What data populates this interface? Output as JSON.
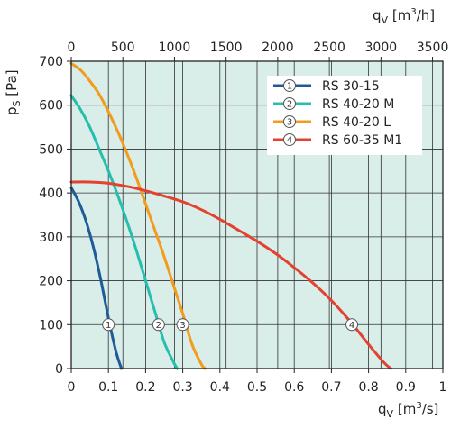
{
  "chart_data": {
    "type": "line",
    "plot_background": "#d9ede9",
    "grid": true,
    "legend_position": "top-right",
    "x_axis": {
      "label_main": "q",
      "label_sub": "V",
      "label_unit": "[m",
      "label_unit_sup": "3",
      "label_unit_end": "/s]",
      "range": [
        0,
        1.0
      ],
      "ticks": [
        "0",
        "0.1",
        "0.2",
        "0.3",
        "0.4",
        "0.5",
        "0.6",
        "0.7",
        "0.8",
        "0.9",
        "1"
      ]
    },
    "x2_axis": {
      "label_main": "q",
      "label_sub": "V",
      "label_unit": "[m",
      "label_unit_sup": "3",
      "label_unit_end": "/h]",
      "range": [
        0,
        3600
      ],
      "ticks": [
        "0",
        "500",
        "1000",
        "1500",
        "2000",
        "2500",
        "3000",
        "3500"
      ]
    },
    "y_axis": {
      "label_main": "p",
      "label_sub": "S",
      "label_unit": "[Pa]",
      "range": [
        0,
        700
      ],
      "ticks": [
        "0",
        "100",
        "200",
        "300",
        "400",
        "500",
        "600",
        "700"
      ]
    },
    "series": [
      {
        "name": "RS 30-15",
        "marker": "1",
        "color": "#1f5b99",
        "marker_point": [
          0.1,
          100
        ],
        "x": [
          0,
          0.02,
          0.04,
          0.06,
          0.08,
          0.1,
          0.12,
          0.135
        ],
        "y": [
          412,
          380,
          335,
          275,
          200,
          115,
          40,
          0
        ]
      },
      {
        "name": "RS 40-20 M",
        "marker": "2",
        "color": "#26bfae",
        "marker_point": [
          0.235,
          100
        ],
        "x": [
          0,
          0.025,
          0.05,
          0.075,
          0.1,
          0.125,
          0.15,
          0.175,
          0.2,
          0.225,
          0.25,
          0.275,
          0.285
        ],
        "y": [
          622,
          590,
          550,
          500,
          450,
          395,
          335,
          270,
          200,
          130,
          60,
          15,
          0
        ]
      },
      {
        "name": "RS 40-20 L",
        "marker": "3",
        "color": "#f29b1d",
        "marker_point": [
          0.3,
          100
        ],
        "x": [
          0,
          0.025,
          0.05,
          0.075,
          0.1,
          0.125,
          0.15,
          0.175,
          0.2,
          0.225,
          0.25,
          0.275,
          0.3,
          0.325,
          0.35,
          0.36
        ],
        "y": [
          695,
          680,
          655,
          625,
          585,
          540,
          490,
          435,
          375,
          315,
          255,
          190,
          125,
          55,
          10,
          0
        ]
      },
      {
        "name": "RS 60-35 M1",
        "marker": "4",
        "color": "#e2422f",
        "marker_point": [
          0.755,
          100
        ],
        "x": [
          0,
          0.05,
          0.1,
          0.15,
          0.2,
          0.25,
          0.3,
          0.35,
          0.4,
          0.45,
          0.5,
          0.55,
          0.6,
          0.65,
          0.7,
          0.75,
          0.8,
          0.84,
          0.86
        ],
        "y": [
          425,
          425,
          422,
          415,
          405,
          393,
          380,
          362,
          340,
          315,
          290,
          262,
          230,
          195,
          155,
          108,
          55,
          15,
          0
        ]
      }
    ]
  }
}
